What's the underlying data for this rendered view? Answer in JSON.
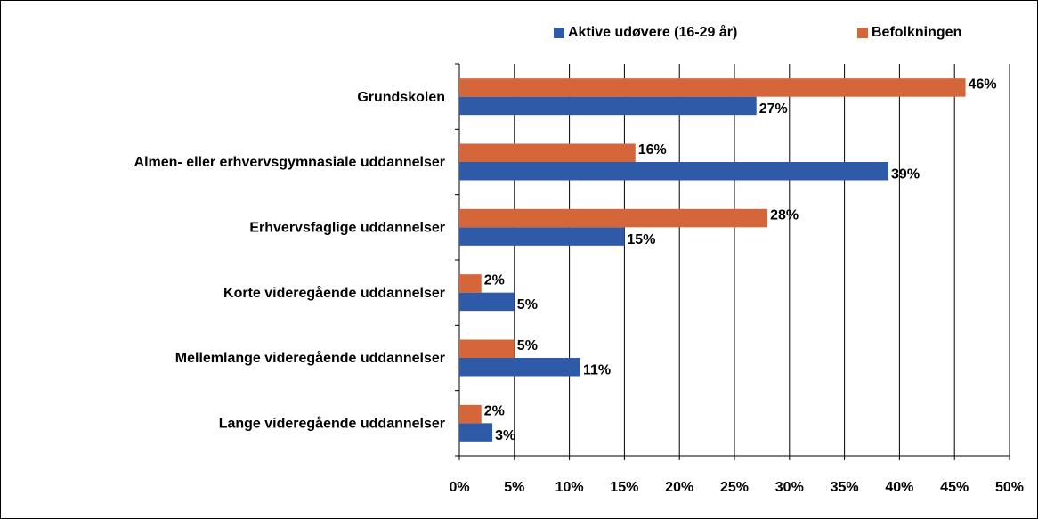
{
  "chart_data": {
    "type": "hbar",
    "categories": [
      "Grundskolen",
      "Almen- eller erhvervsgymnasiale uddannelser",
      "Erhvervsfaglige uddannelser",
      "Korte videregående uddannelser",
      "Mellemlange videregående uddannelser",
      "Lange videregående uddannelser"
    ],
    "series": [
      {
        "name": "Aktive udøvere (16-29 år)",
        "color": "#2e5aa8",
        "values": [
          27,
          39,
          15,
          5,
          11,
          3
        ],
        "value_labels": [
          "27%",
          "39%",
          "15%",
          "5%",
          "11%",
          "3%"
        ]
      },
      {
        "name": "Befolkningen",
        "color": "#d4663a",
        "values": [
          46,
          16,
          28,
          2,
          5,
          2
        ],
        "value_labels": [
          "46%",
          "16%",
          "28%",
          "2%",
          "5%",
          "2%"
        ]
      }
    ],
    "xlim": [
      0,
      50
    ],
    "xticks": [
      {
        "value": 0,
        "label": "0%"
      },
      {
        "value": 5,
        "label": "5%"
      },
      {
        "value": 10,
        "label": "10%"
      },
      {
        "value": 15,
        "label": "15%"
      },
      {
        "value": 20,
        "label": "20%"
      },
      {
        "value": 25,
        "label": "25%"
      },
      {
        "value": 30,
        "label": "30%"
      },
      {
        "value": 35,
        "label": "35%"
      },
      {
        "value": 40,
        "label": "40%"
      },
      {
        "value": 45,
        "label": "45%"
      },
      {
        "value": 50,
        "label": "50%"
      }
    ],
    "grid": true
  }
}
